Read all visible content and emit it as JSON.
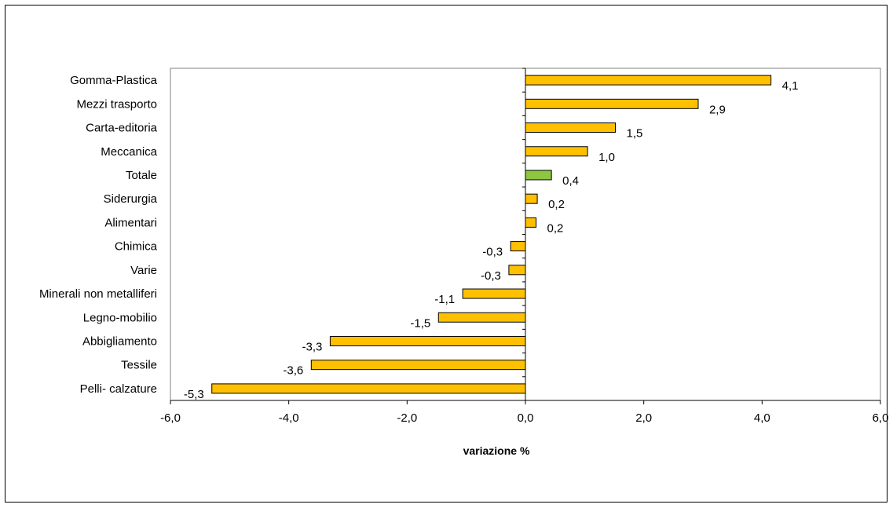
{
  "chart_data": {
    "type": "bar",
    "orientation": "horizontal",
    "categories": [
      "Gomma-Plastica",
      "Mezzi trasporto",
      "Carta-editoria",
      "Meccanica",
      "Totale",
      "Siderurgia",
      "Alimentari",
      "Chimica",
      "Varie",
      "Minerali non metalliferi",
      "Legno-mobilio",
      "Abbigliamento",
      "Tessile",
      "Pelli- calzature"
    ],
    "values": [
      4.15,
      2.92,
      1.52,
      1.05,
      0.44,
      0.2,
      0.18,
      -0.25,
      -0.28,
      -1.06,
      -1.47,
      -3.3,
      -3.62,
      -5.3
    ],
    "value_labels": [
      "4,1",
      "2,9",
      "1,5",
      "1,0",
      "0,4",
      "0,2",
      "0,2",
      "-0,3",
      "-0,3",
      "-1,1",
      "-1,5",
      "-3,3",
      "-3,6",
      "-5,3"
    ],
    "highlight_category": "Totale",
    "bar_color": "#FFC000",
    "highlight_color": "#8DC63F",
    "xlabel": "variazione %",
    "ylabel": "",
    "xlim": [
      -6,
      6
    ],
    "xticks": [
      -6,
      -4,
      -2,
      0,
      2,
      4,
      6
    ],
    "xtick_labels": [
      "-6,0",
      "-4,0",
      "-2,0",
      "0,0",
      "2,0",
      "4,0",
      "6,0"
    ],
    "grid": false,
    "legend": "none"
  }
}
